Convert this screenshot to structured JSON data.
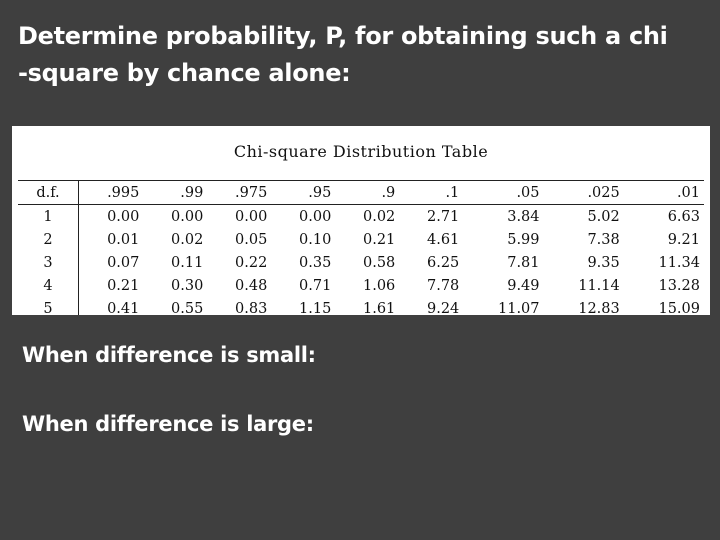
{
  "title_lines": [
    "Determine probability, P, for obtaining such a chi",
    "-square by chance alone:"
  ],
  "table": {
    "caption": "Chi-square Distribution Table",
    "header": [
      "d.f.",
      ".995",
      ".99",
      ".975",
      ".95",
      ".9",
      ".1",
      ".05",
      ".025",
      ".01"
    ],
    "rows": [
      [
        "1",
        "0.00",
        "0.00",
        "0.00",
        "0.00",
        "0.02",
        "2.71",
        "3.84",
        "5.02",
        "6.63"
      ],
      [
        "2",
        "0.01",
        "0.02",
        "0.05",
        "0.10",
        "0.21",
        "4.61",
        "5.99",
        "7.38",
        "9.21"
      ],
      [
        "3",
        "0.07",
        "0.11",
        "0.22",
        "0.35",
        "0.58",
        "6.25",
        "7.81",
        "9.35",
        "11.34"
      ],
      [
        "4",
        "0.21",
        "0.30",
        "0.48",
        "0.71",
        "1.06",
        "7.78",
        "9.49",
        "11.14",
        "13.28"
      ],
      [
        "5",
        "0.41",
        "0.55",
        "0.83",
        "1.15",
        "1.61",
        "9.24",
        "11.07",
        "12.83",
        "15.09"
      ]
    ]
  },
  "body": {
    "small": "When difference is small:",
    "large": "When difference is large:"
  }
}
